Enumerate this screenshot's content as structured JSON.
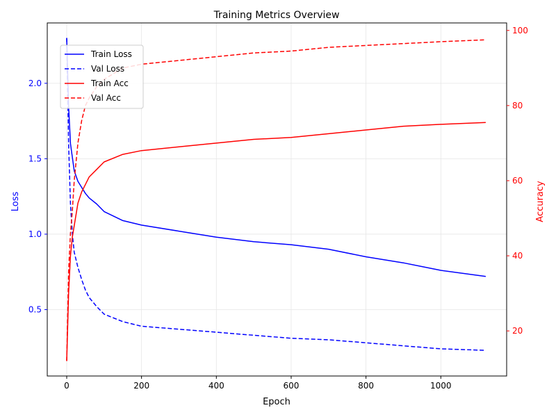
{
  "chart_data": {
    "type": "line",
    "title": "Training Metrics Overview",
    "xlabel": "Epoch",
    "ylabel_left": "Loss",
    "ylabel_right": "Accuracy",
    "xlim": [
      -52,
      1176
    ],
    "ylim_left": [
      0.06,
      2.4
    ],
    "ylim_right": [
      8,
      102
    ],
    "x_ticks": [
      "0",
      "200",
      "400",
      "600",
      "800",
      "1000"
    ],
    "y_left_ticks": [
      "0.5",
      "1.0",
      "1.5",
      "2.0"
    ],
    "y_right_ticks": [
      "20",
      "40",
      "60",
      "80",
      "100"
    ],
    "grid": true,
    "legend_position": "upper-left",
    "colors": {
      "loss": "#0000ff",
      "acc": "#ff0000",
      "left_axis": "#0000ff",
      "right_axis": "#ff0000"
    },
    "series": [
      {
        "name": "Train Loss",
        "axis": "left",
        "style": "solid",
        "color": "#0000ff",
        "x": [
          0,
          5,
          10,
          20,
          30,
          40,
          50,
          60,
          80,
          100,
          150,
          200,
          300,
          400,
          500,
          600,
          700,
          800,
          900,
          1000,
          1120
        ],
        "y": [
          2.3,
          1.85,
          1.6,
          1.42,
          1.35,
          1.31,
          1.27,
          1.24,
          1.2,
          1.15,
          1.09,
          1.06,
          1.02,
          0.98,
          0.95,
          0.93,
          0.9,
          0.85,
          0.81,
          0.76,
          0.72
        ]
      },
      {
        "name": "Val Loss",
        "axis": "left",
        "style": "dashed",
        "color": "#0000ff",
        "x": [
          0,
          5,
          10,
          15,
          20,
          30,
          40,
          50,
          60,
          80,
          100,
          150,
          200,
          300,
          400,
          500,
          600,
          700,
          800,
          900,
          1000,
          1120
        ],
        "y": [
          2.3,
          1.6,
          1.2,
          1.0,
          0.88,
          0.78,
          0.7,
          0.63,
          0.58,
          0.52,
          0.47,
          0.42,
          0.39,
          0.37,
          0.35,
          0.33,
          0.31,
          0.3,
          0.28,
          0.26,
          0.24,
          0.23
        ]
      },
      {
        "name": "Train Acc",
        "axis": "right",
        "style": "solid",
        "color": "#ff0000",
        "x": [
          0,
          5,
          10,
          15,
          20,
          30,
          40,
          50,
          60,
          80,
          100,
          150,
          200,
          300,
          400,
          500,
          600,
          700,
          800,
          900,
          1000,
          1120
        ],
        "y": [
          12,
          30,
          40,
          45,
          48,
          54,
          57,
          59,
          61,
          63,
          65,
          67,
          68,
          69,
          70,
          71,
          71.5,
          72.5,
          73.5,
          74.5,
          75,
          75.5
        ]
      },
      {
        "name": "Val Acc",
        "axis": "right",
        "style": "dashed",
        "color": "#ff0000",
        "x": [
          0,
          5,
          10,
          15,
          20,
          30,
          40,
          50,
          60,
          80,
          100,
          150,
          200,
          300,
          400,
          500,
          600,
          700,
          800,
          900,
          1000,
          1120
        ],
        "y": [
          12,
          36,
          46,
          52,
          60,
          70,
          76,
          80,
          82,
          85,
          87,
          90,
          91,
          92,
          93,
          94,
          94.5,
          95.5,
          96,
          96.5,
          97,
          97.5
        ]
      }
    ]
  }
}
